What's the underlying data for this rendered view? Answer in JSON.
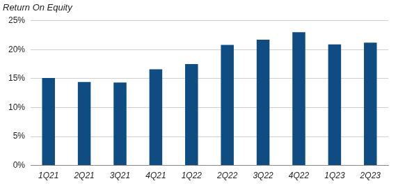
{
  "chart_data": {
    "type": "bar",
    "title": "Return On Equity",
    "categories": [
      "1Q21",
      "2Q21",
      "3Q21",
      "4Q21",
      "1Q22",
      "2Q22",
      "3Q22",
      "4Q22",
      "1Q23",
      "2Q23"
    ],
    "values": [
      15.1,
      14.4,
      14.3,
      16.6,
      17.5,
      20.8,
      21.7,
      23.0,
      20.9,
      21.2
    ],
    "color": "#0f4c81",
    "ylim": [
      0,
      25
    ],
    "yticks": [
      {
        "value": 0,
        "label": "0%"
      },
      {
        "value": 5,
        "label": "5%"
      },
      {
        "value": 10,
        "label": "10%"
      },
      {
        "value": 15,
        "label": "15%"
      },
      {
        "value": 20,
        "label": "20%"
      },
      {
        "value": 25,
        "label": "25%"
      }
    ],
    "grid": true
  }
}
